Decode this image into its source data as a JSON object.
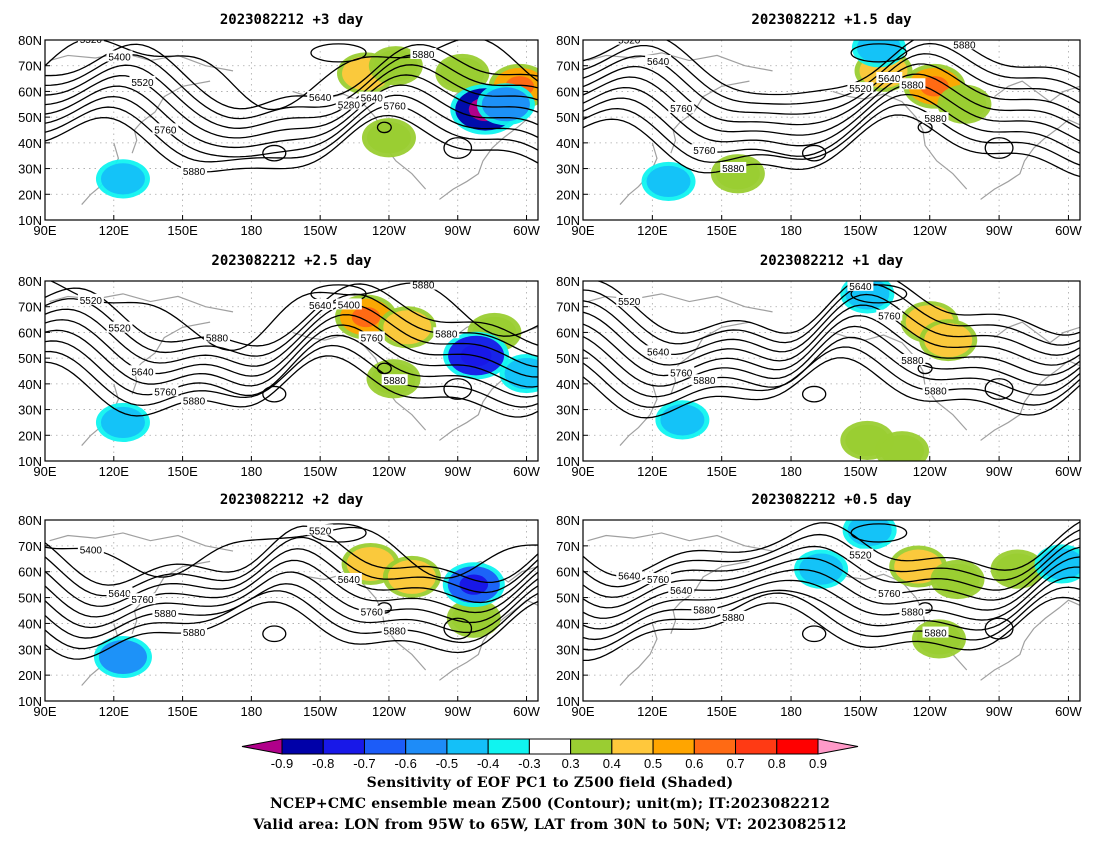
{
  "chart_data": {
    "type": "heatmap",
    "panels": [
      {
        "title": "2023082212 +3 day",
        "xticks": [
          "90E",
          "120E",
          "150E",
          "180",
          "150W",
          "120W",
          "90W",
          "60W"
        ],
        "yticks": [
          "80N",
          "70N",
          "60N",
          "50N",
          "40N",
          "30N",
          "20N",
          "10N"
        ],
        "xlim": [
          90,
          305
        ],
        "ylim": [
          10,
          80
        ],
        "contour_labels": [
          "5520",
          "5640",
          "5400",
          "5280",
          "5520",
          "5640",
          "5760",
          "5760",
          "5880",
          "5880"
        ],
        "positive_regions": [
          {
            "lon": 230,
            "lat": 67,
            "value": 0.5
          },
          {
            "lon": 243,
            "lat": 70,
            "value": 0.4
          },
          {
            "lon": 272,
            "lat": 67,
            "value": 0.4
          },
          {
            "lon": 297,
            "lat": 62,
            "value": 0.6
          },
          {
            "lon": 240,
            "lat": 42,
            "value": 0.4
          }
        ],
        "negative_regions": [
          {
            "lon": 282,
            "lat": 53,
            "value": -0.8
          },
          {
            "lon": 291,
            "lat": 55,
            "value": -0.5
          },
          {
            "lon": 124,
            "lat": 26,
            "value": -0.4
          }
        ]
      },
      {
        "title": "2023082212 +1.5 day",
        "xticks": [
          "90E",
          "120E",
          "150E",
          "180",
          "150W",
          "120W",
          "90W",
          "60W"
        ],
        "yticks": [
          "80N",
          "70N",
          "60N",
          "50N",
          "40N",
          "30N",
          "20N",
          "10N"
        ],
        "xlim": [
          90,
          305
        ],
        "ylim": [
          10,
          80
        ],
        "contour_labels": [
          "5520",
          "5520",
          "5640",
          "5640",
          "5760",
          "5880",
          "5760",
          "5880",
          "5880",
          "5880"
        ],
        "positive_regions": [
          {
            "lon": 220,
            "lat": 68,
            "value": 0.5
          },
          {
            "lon": 242,
            "lat": 62,
            "value": 0.6
          },
          {
            "lon": 255,
            "lat": 55,
            "value": 0.4
          },
          {
            "lon": 157,
            "lat": 28,
            "value": 0.4
          }
        ],
        "negative_regions": [
          {
            "lon": 127,
            "lat": 25,
            "value": -0.4
          },
          {
            "lon": 218,
            "lat": 77,
            "value": -0.4
          }
        ]
      },
      {
        "title": "2023082212 +2.5 day",
        "xticks": [
          "90E",
          "120E",
          "150E",
          "180",
          "150W",
          "120W",
          "90W",
          "60W"
        ],
        "yticks": [
          "80N",
          "70N",
          "60N",
          "50N",
          "40N",
          "30N",
          "20N",
          "10N"
        ],
        "xlim": [
          90,
          305
        ],
        "ylim": [
          10,
          80
        ],
        "contour_labels": [
          "5520",
          "5640",
          "5520",
          "5400",
          "5640",
          "5760",
          "5760",
          "5880",
          "5880",
          "5880",
          "5880",
          "5880"
        ],
        "positive_regions": [
          {
            "lon": 230,
            "lat": 66,
            "value": 0.6
          },
          {
            "lon": 248,
            "lat": 62,
            "value": 0.5
          },
          {
            "lon": 242,
            "lat": 42,
            "value": 0.4
          },
          {
            "lon": 286,
            "lat": 60,
            "value": 0.4
          }
        ],
        "negative_regions": [
          {
            "lon": 278,
            "lat": 51,
            "value": -0.7
          },
          {
            "lon": 124,
            "lat": 25,
            "value": -0.4
          },
          {
            "lon": 300,
            "lat": 44,
            "value": -0.4
          }
        ]
      },
      {
        "title": "2023082212 +1 day",
        "xticks": [
          "90E",
          "120E",
          "150E",
          "180",
          "150W",
          "120W",
          "90W",
          "60W"
        ],
        "yticks": [
          "80N",
          "70N",
          "60N",
          "50N",
          "40N",
          "30N",
          "20N",
          "10N"
        ],
        "xlim": [
          90,
          305
        ],
        "ylim": [
          10,
          80
        ],
        "contour_labels": [
          "5520",
          "5640",
          "5640",
          "5760",
          "5760",
          "5880",
          "5880",
          "5880"
        ],
        "positive_regions": [
          {
            "lon": 240,
            "lat": 64,
            "value": 0.5
          },
          {
            "lon": 248,
            "lat": 57,
            "value": 0.5
          },
          {
            "lon": 213,
            "lat": 18,
            "value": 0.4
          },
          {
            "lon": 228,
            "lat": 14,
            "value": 0.4
          }
        ],
        "negative_regions": [
          {
            "lon": 133,
            "lat": 26,
            "value": -0.4
          },
          {
            "lon": 213,
            "lat": 75,
            "value": -0.4
          }
        ]
      },
      {
        "title": "2023082212 +2 day",
        "xticks": [
          "90E",
          "120E",
          "150E",
          "180",
          "150W",
          "120W",
          "90W",
          "60W"
        ],
        "yticks": [
          "80N",
          "70N",
          "60N",
          "50N",
          "40N",
          "30N",
          "20N",
          "10N"
        ],
        "xlim": [
          90,
          305
        ],
        "ylim": [
          10,
          80
        ],
        "contour_labels": [
          "5400",
          "5520",
          "5640",
          "5640",
          "5760",
          "5760",
          "5880",
          "5880",
          "5880"
        ],
        "positive_regions": [
          {
            "lon": 232,
            "lat": 63,
            "value": 0.5
          },
          {
            "lon": 250,
            "lat": 58,
            "value": 0.5
          },
          {
            "lon": 277,
            "lat": 42,
            "value": 0.4
          }
        ],
        "negative_regions": [
          {
            "lon": 277,
            "lat": 55,
            "value": -0.6
          },
          {
            "lon": 124,
            "lat": 27,
            "value": -0.5
          }
        ]
      },
      {
        "title": "2023082212 +0.5 day",
        "xticks": [
          "90E",
          "120E",
          "150E",
          "180",
          "150W",
          "120W",
          "90W",
          "60W"
        ],
        "yticks": [
          "80N",
          "70N",
          "60N",
          "50N",
          "40N",
          "30N",
          "20N",
          "10N"
        ],
        "xlim": [
          90,
          305
        ],
        "ylim": [
          10,
          80
        ],
        "contour_labels": [
          "5640",
          "5520",
          "5760",
          "5760",
          "5640",
          "5880",
          "5880",
          "5880",
          "5880"
        ],
        "positive_regions": [
          {
            "lon": 235,
            "lat": 62,
            "value": 0.5
          },
          {
            "lon": 252,
            "lat": 57,
            "value": 0.4
          },
          {
            "lon": 244,
            "lat": 34,
            "value": 0.4
          },
          {
            "lon": 278,
            "lat": 61,
            "value": 0.4
          }
        ],
        "negative_regions": [
          {
            "lon": 214,
            "lat": 76,
            "value": -0.4
          },
          {
            "lon": 193,
            "lat": 61,
            "value": -0.4
          },
          {
            "lon": 297,
            "lat": 63,
            "value": -0.4
          }
        ]
      }
    ],
    "colorbar": {
      "levels": [
        "-0.9",
        "-0.8",
        "-0.7",
        "-0.6",
        "-0.5",
        "-0.4",
        "-0.3",
        "0.3",
        "0.4",
        "0.5",
        "0.6",
        "0.7",
        "0.8",
        "0.9"
      ],
      "colors": [
        "#b0008a",
        "#0000a8",
        "#1818e8",
        "#1c5cf8",
        "#1e8cf8",
        "#14c0f8",
        "#10f4f0",
        "#ffffff",
        "#9acd32",
        "#ffc83c",
        "#ffa500",
        "#ff6a14",
        "#ff3a14",
        "#ff0000",
        "#ff9ac8"
      ]
    }
  },
  "caption": {
    "line1": "Sensitivity of EOF PC1 to Z500 field (Shaded)",
    "line2": "NCEP+CMC ensemble mean Z500 (Contour); unit(m); IT:2023082212",
    "line3": "Valid area: LON from 95W to 65W, LAT from 30N to 50N; VT: 2023082512"
  }
}
